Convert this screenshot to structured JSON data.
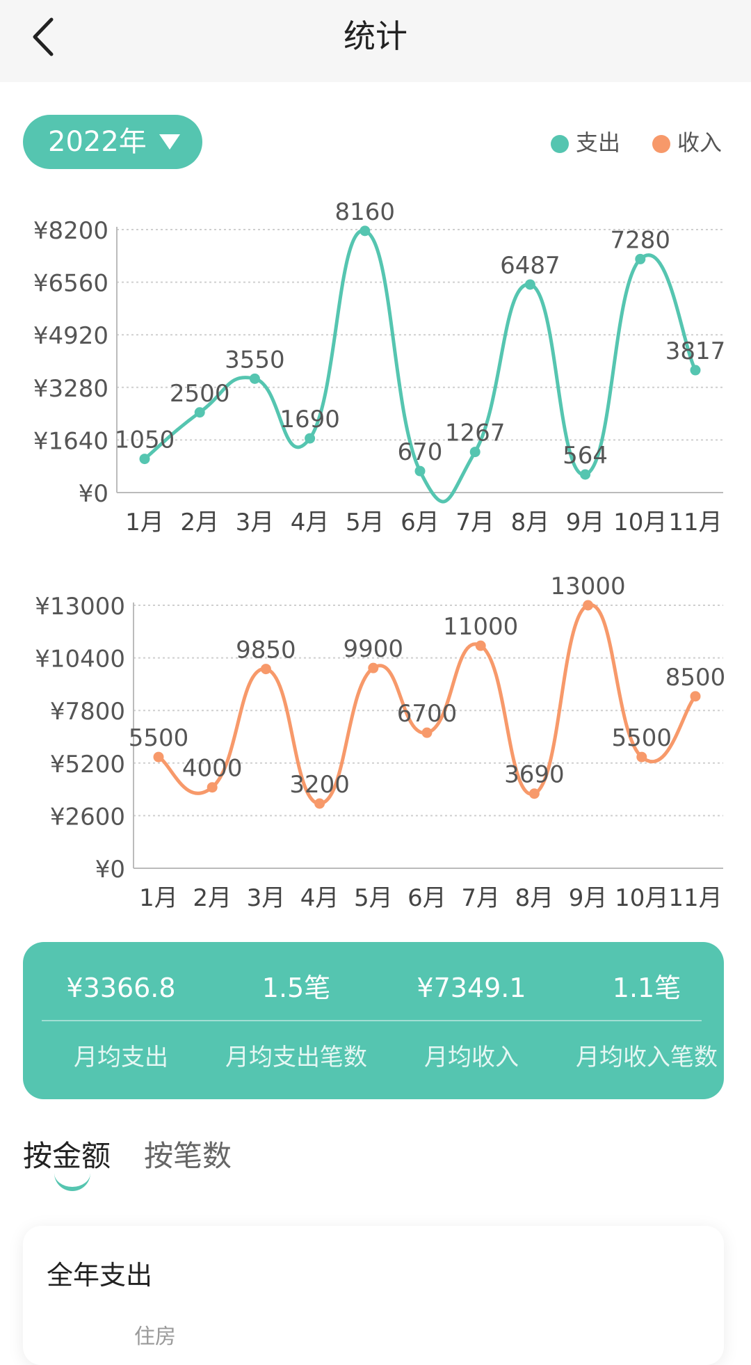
{
  "header": {
    "title": "统计"
  },
  "year_selector": {
    "label": "2022年"
  },
  "legend": [
    {
      "label": "支出",
      "color": "#55c5b0"
    },
    {
      "label": "收入",
      "color": "#f7996a"
    }
  ],
  "chart_data": [
    {
      "type": "line",
      "categories": [
        "1月",
        "2月",
        "3月",
        "4月",
        "5月",
        "6月",
        "7月",
        "8月",
        "9月",
        "10月",
        "11月"
      ],
      "series": [
        {
          "name": "支出",
          "color": "#55c5b0",
          "values": [
            1050,
            2500,
            3550,
            1690,
            8160,
            670,
            1267,
            6487,
            564,
            7280,
            3817
          ]
        }
      ],
      "data_labels": [
        "1050",
        "2500",
        "3550",
        "1690",
        "8160",
        "670",
        "1267",
        "6487",
        "564",
        "7280",
        "3817"
      ],
      "y_ticks": [
        "¥0",
        "¥1640",
        "¥3280",
        "¥4920",
        "¥6560",
        "¥8200"
      ],
      "ylim": [
        0,
        8200
      ],
      "grid": true
    },
    {
      "type": "line",
      "categories": [
        "1月",
        "2月",
        "3月",
        "4月",
        "5月",
        "6月",
        "7月",
        "8月",
        "9月",
        "10月",
        "11月"
      ],
      "series": [
        {
          "name": "收入",
          "color": "#f7996a",
          "values": [
            5500,
            4000,
            9850,
            3200,
            9900,
            6700,
            11000,
            3690,
            13000,
            5500,
            8500
          ]
        }
      ],
      "data_labels": [
        "5500",
        "4000",
        "9850",
        "3200",
        "9900",
        "6700",
        "11000",
        "3690",
        "13000",
        "5500",
        "8500"
      ],
      "y_ticks": [
        "¥0",
        "¥2600",
        "¥5200",
        "¥7800",
        "¥10400",
        "¥13000"
      ],
      "ylim": [
        0,
        13000
      ],
      "grid": true
    }
  ],
  "summary": [
    {
      "value": "¥3366.8",
      "label": "月均支出"
    },
    {
      "value": "1.5笔",
      "label": "月均支出笔数"
    },
    {
      "value": "¥7349.1",
      "label": "月均收入"
    },
    {
      "value": "1.1笔",
      "label": "月均收入笔数"
    }
  ],
  "tabs": {
    "amount": "按金额",
    "count": "按笔数"
  },
  "card": {
    "title": "全年支出",
    "sub": "住房"
  }
}
